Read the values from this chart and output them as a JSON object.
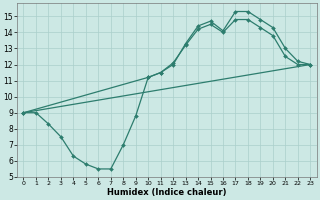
{
  "line1_x": [
    0,
    1,
    2,
    3,
    4,
    5,
    6,
    7,
    8,
    9,
    10,
    11,
    12,
    13,
    14,
    15,
    16,
    17,
    18,
    19,
    20,
    21,
    22,
    23
  ],
  "line1_y": [
    9.0,
    9.0,
    8.3,
    7.5,
    6.3,
    5.8,
    5.5,
    5.5,
    7.0,
    8.8,
    11.2,
    11.5,
    12.0,
    13.3,
    14.4,
    14.7,
    14.1,
    15.3,
    15.3,
    14.8,
    14.3,
    13.0,
    12.2,
    12.0
  ],
  "line2_x": [
    0,
    23
  ],
  "line2_y": [
    9.0,
    12.0
  ],
  "line3_x": [
    0,
    10,
    11,
    12,
    13,
    14,
    15,
    16,
    17,
    18,
    19,
    20,
    21,
    22,
    23
  ],
  "line3_y": [
    9.0,
    11.2,
    11.5,
    12.1,
    13.2,
    14.2,
    14.5,
    14.0,
    14.8,
    14.8,
    14.3,
    13.8,
    12.5,
    12.0,
    12.0
  ],
  "color": "#2d7d6e",
  "bg_color": "#cce8e4",
  "grid_color": "#aacfcb",
  "xlabel": "Humidex (Indice chaleur)",
  "xlim": [
    -0.5,
    23.5
  ],
  "ylim": [
    5,
    15.8
  ],
  "xticks": [
    0,
    1,
    2,
    3,
    4,
    5,
    6,
    7,
    8,
    9,
    10,
    11,
    12,
    13,
    14,
    15,
    16,
    17,
    18,
    19,
    20,
    21,
    22,
    23
  ],
  "yticks": [
    5,
    6,
    7,
    8,
    9,
    10,
    11,
    12,
    13,
    14,
    15
  ],
  "markersize": 2.0,
  "linewidth": 0.9
}
